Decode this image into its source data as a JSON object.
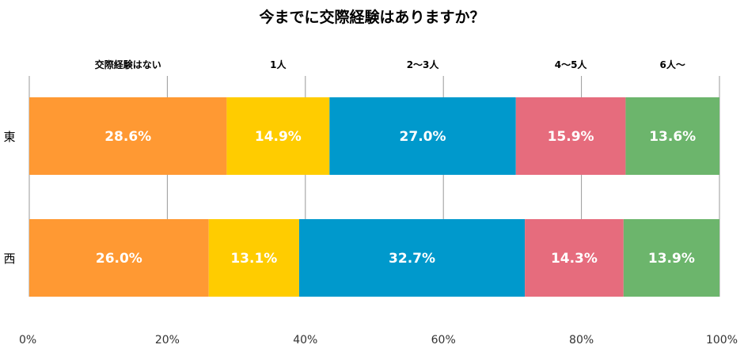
{
  "chart_data": {
    "type": "bar",
    "orientation": "horizontal-stacked-100",
    "title": "今までに交際経験はありますか？",
    "categories": [
      "東",
      "西"
    ],
    "series": [
      {
        "name": "交際経験はない",
        "color": "#FF9933",
        "values": [
          28.6,
          26.0
        ]
      },
      {
        "name": "1人",
        "color": "#FFCC00",
        "values": [
          14.9,
          13.1
        ]
      },
      {
        "name": "2〜3人",
        "color": "#0099CC",
        "values": [
          27.0,
          32.7
        ]
      },
      {
        "name": "4〜5人",
        "color": "#E66C7D",
        "values": [
          15.9,
          14.3
        ]
      },
      {
        "name": "6人〜",
        "color": "#6CB56C",
        "values": [
          13.6,
          13.9
        ]
      }
    ],
    "data_labels": [
      [
        "28.6%",
        "14.9%",
        "27.0%",
        "15.9%",
        "13.6%"
      ],
      [
        "26.0%",
        "13.1%",
        "32.7%",
        "14.3%",
        "13.9%"
      ]
    ],
    "xlim": [
      0,
      100
    ],
    "xticks": [
      "0%",
      "20%",
      "40%",
      "60%",
      "80%",
      "100%"
    ],
    "grid": true,
    "legend": "top"
  }
}
